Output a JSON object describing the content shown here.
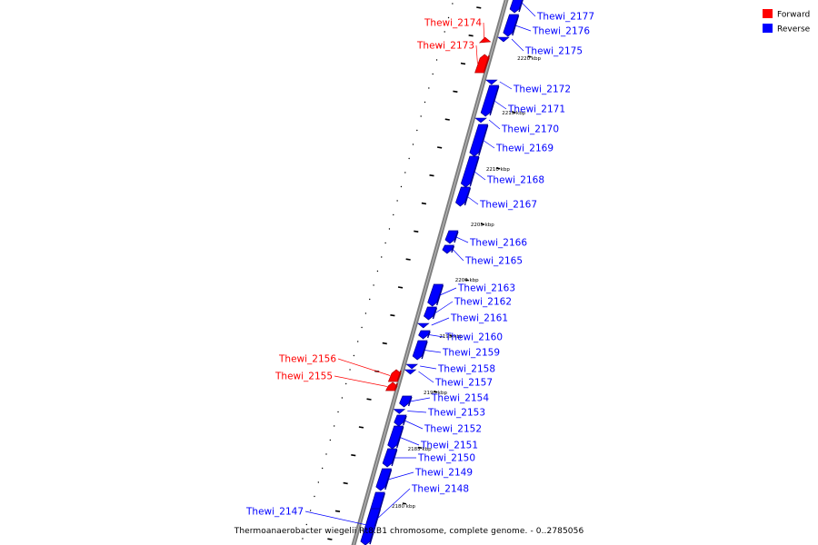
{
  "legend": {
    "forward_label": "Forward",
    "reverse_label": "Reverse",
    "forward_color": "#ff0000",
    "reverse_color": "#0000ff"
  },
  "caption": "Thermoanaerobacter wiegelii Rt8.B1 chromosome, complete genome. - 0..2785056",
  "colors": {
    "axis": "#7f7f7f",
    "forward": "#ff0000",
    "forward_dark": "#b00000",
    "reverse": "#0000ff",
    "reverse_dark": "#000090",
    "tick": "#000000"
  },
  "kbp_marks": [
    "2220 kbp",
    "2215 kbp",
    "2210 kbp",
    "2205 kbp",
    "2200 kbp",
    "2195 kbp",
    "2190 kbp",
    "2185 kbp",
    "2180 kbp"
  ],
  "genes": [
    {
      "name": "Thewi_2177",
      "strand": "reverse"
    },
    {
      "name": "Thewi_2176",
      "strand": "reverse"
    },
    {
      "name": "Thewi_2175",
      "strand": "reverse"
    },
    {
      "name": "Thewi_2174",
      "strand": "forward"
    },
    {
      "name": "Thewi_2173",
      "strand": "forward"
    },
    {
      "name": "Thewi_2172",
      "strand": "reverse"
    },
    {
      "name": "Thewi_2171",
      "strand": "reverse"
    },
    {
      "name": "Thewi_2170",
      "strand": "reverse"
    },
    {
      "name": "Thewi_2169",
      "strand": "reverse"
    },
    {
      "name": "Thewi_2168",
      "strand": "reverse"
    },
    {
      "name": "Thewi_2167",
      "strand": "reverse"
    },
    {
      "name": "Thewi_2166",
      "strand": "reverse"
    },
    {
      "name": "Thewi_2165",
      "strand": "reverse"
    },
    {
      "name": "Thewi_2163",
      "strand": "reverse"
    },
    {
      "name": "Thewi_2162",
      "strand": "reverse"
    },
    {
      "name": "Thewi_2161",
      "strand": "reverse"
    },
    {
      "name": "Thewi_2160",
      "strand": "reverse"
    },
    {
      "name": "Thewi_2159",
      "strand": "reverse"
    },
    {
      "name": "Thewi_2158",
      "strand": "reverse"
    },
    {
      "name": "Thewi_2157",
      "strand": "reverse"
    },
    {
      "name": "Thewi_2156",
      "strand": "forward"
    },
    {
      "name": "Thewi_2155",
      "strand": "forward"
    },
    {
      "name": "Thewi_2154",
      "strand": "reverse"
    },
    {
      "name": "Thewi_2153",
      "strand": "reverse"
    },
    {
      "name": "Thewi_2152",
      "strand": "reverse"
    },
    {
      "name": "Thewi_2151",
      "strand": "reverse"
    },
    {
      "name": "Thewi_2150",
      "strand": "reverse"
    },
    {
      "name": "Thewi_2149",
      "strand": "reverse"
    },
    {
      "name": "Thewi_2148",
      "strand": "reverse"
    },
    {
      "name": "Thewi_2147",
      "strand": "reverse"
    }
  ]
}
